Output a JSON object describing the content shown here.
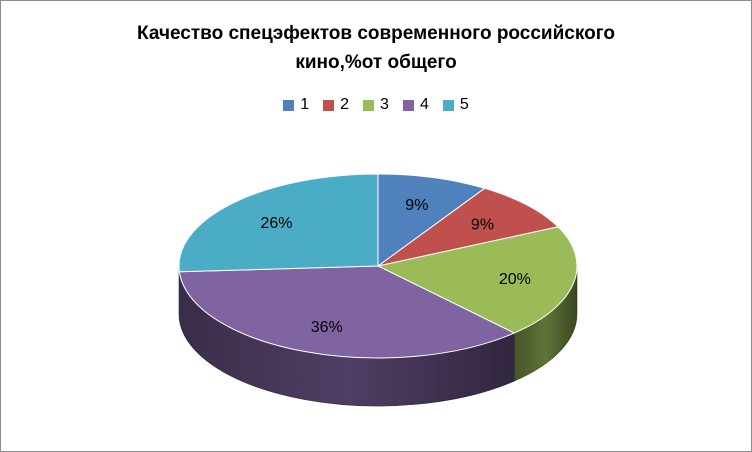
{
  "chart_data": {
    "type": "pie",
    "style": "3d",
    "title_lines": [
      "Качество спецэфектов современного российского",
      "кино,%от общего"
    ],
    "legend_position": "top",
    "slices": [
      {
        "name": "1",
        "value": 9,
        "label": "9%",
        "color": "#4f81bd"
      },
      {
        "name": "2",
        "value": 9,
        "label": "9%",
        "color": "#c0504d"
      },
      {
        "name": "3",
        "value": 20,
        "label": "20%",
        "color": "#9bbb59"
      },
      {
        "name": "4",
        "value": 36,
        "label": "36%",
        "color": "#8064a2"
      },
      {
        "name": "5",
        "value": 26,
        "label": "26%",
        "color": "#4bacc6"
      }
    ]
  }
}
